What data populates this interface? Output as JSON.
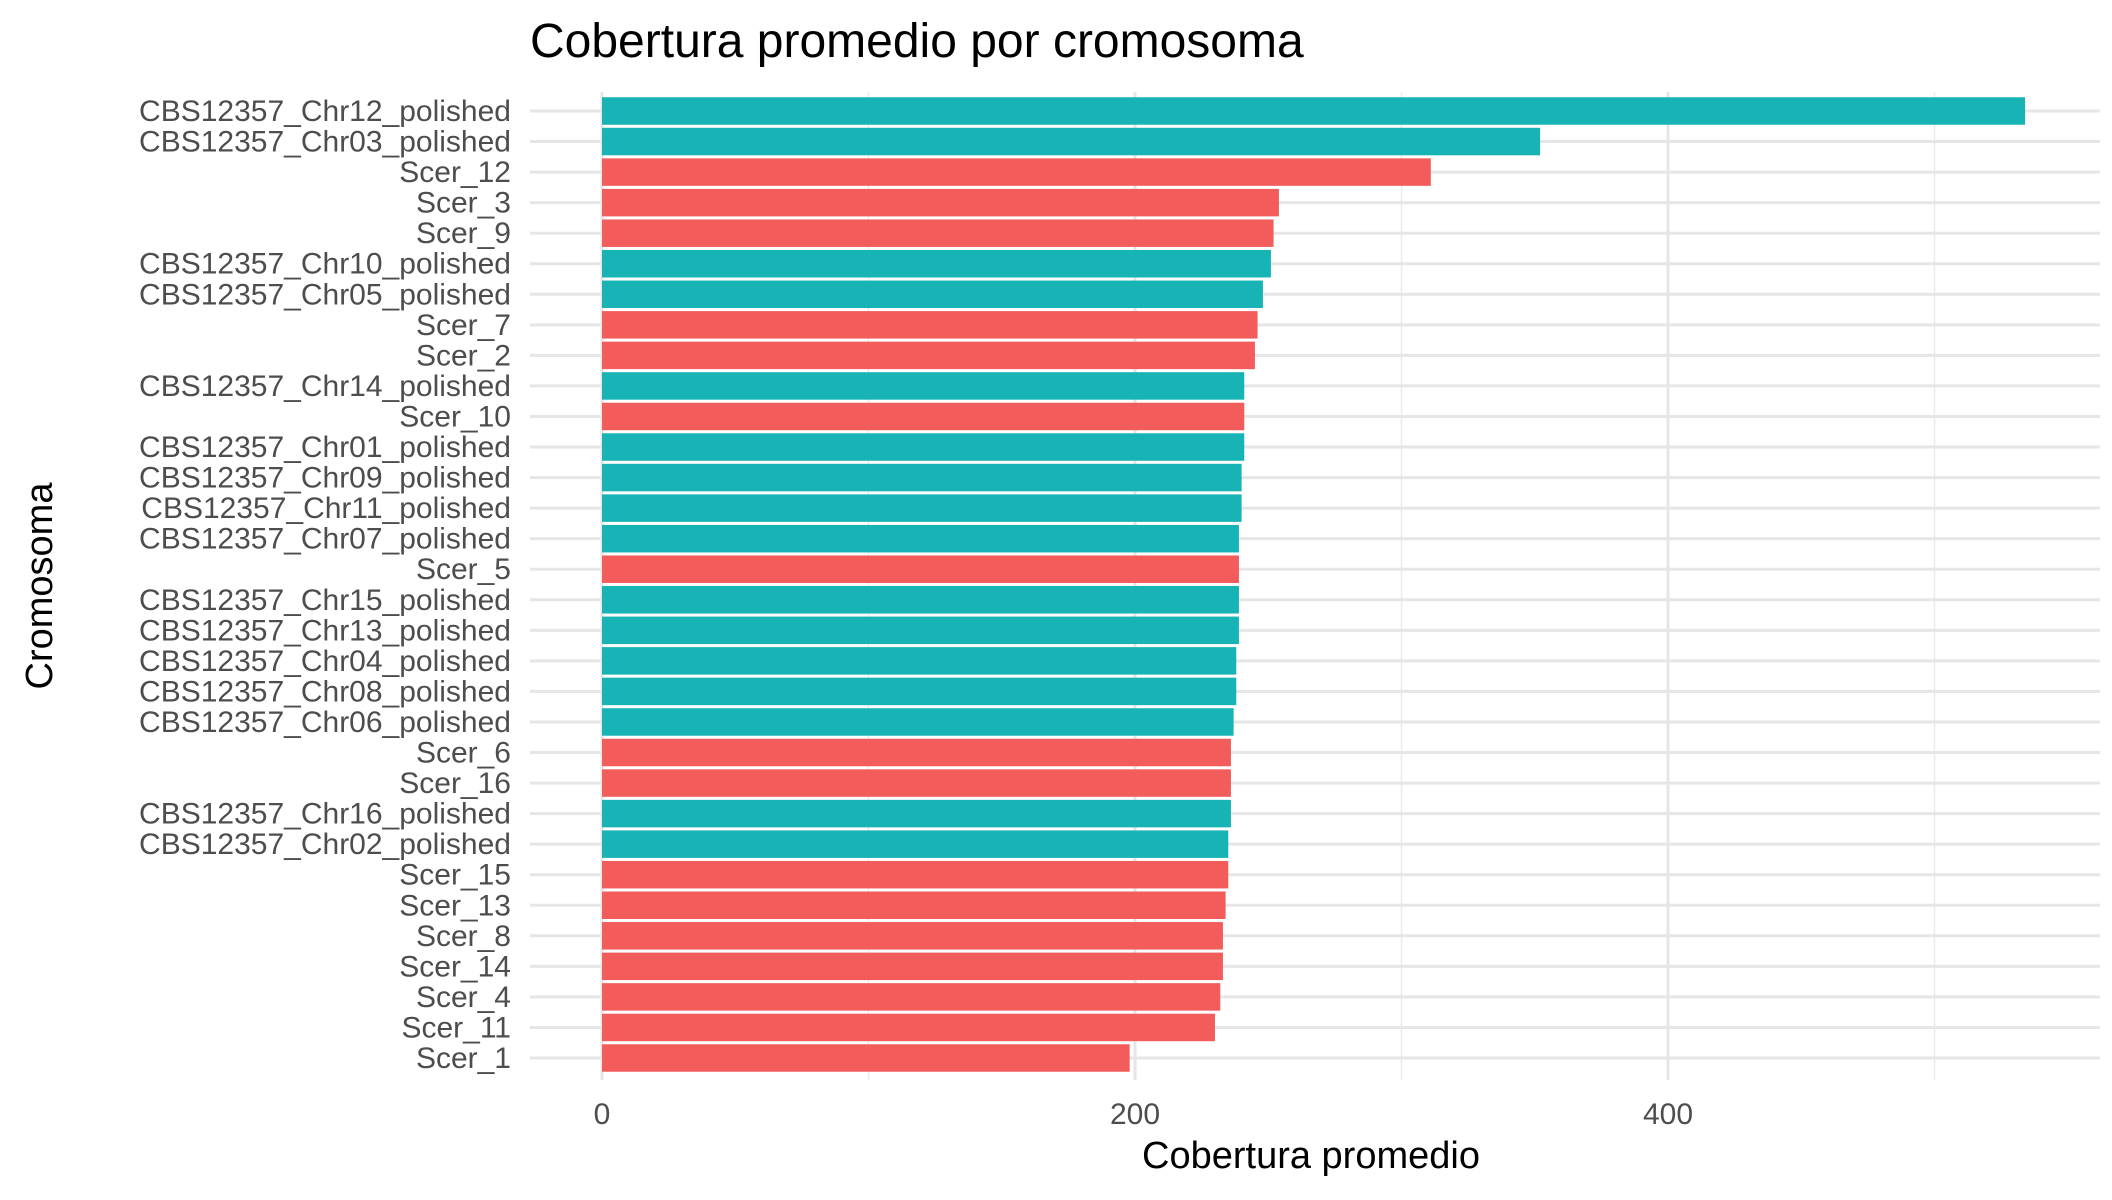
{
  "chart_data": {
    "type": "bar",
    "orientation": "horizontal",
    "title": "Cobertura promedio por cromosoma",
    "xlabel": "Cobertura promedio",
    "ylabel": "Cromosoma",
    "xlim": [
      0,
      540
    ],
    "xticks": [
      0,
      200,
      400
    ],
    "xtick_labels": [
      "0",
      "200",
      "400"
    ],
    "grid": true,
    "legend": "none",
    "colors": {
      "CBS12357": "#17b3b5",
      "Scer": "#f25d5b"
    },
    "bars": [
      {
        "category": "CBS12357_Chr12_polished",
        "value": 534,
        "group": "CBS12357"
      },
      {
        "category": "CBS12357_Chr03_polished",
        "value": 352,
        "group": "CBS12357"
      },
      {
        "category": "Scer_12",
        "value": 311,
        "group": "Scer"
      },
      {
        "category": "Scer_3",
        "value": 254,
        "group": "Scer"
      },
      {
        "category": "Scer_9",
        "value": 252,
        "group": "Scer"
      },
      {
        "category": "CBS12357_Chr10_polished",
        "value": 251,
        "group": "CBS12357"
      },
      {
        "category": "CBS12357_Chr05_polished",
        "value": 248,
        "group": "CBS12357"
      },
      {
        "category": "Scer_7",
        "value": 246,
        "group": "Scer"
      },
      {
        "category": "Scer_2",
        "value": 245,
        "group": "Scer"
      },
      {
        "category": "CBS12357_Chr14_polished",
        "value": 241,
        "group": "CBS12357"
      },
      {
        "category": "Scer_10",
        "value": 241,
        "group": "Scer"
      },
      {
        "category": "CBS12357_Chr01_polished",
        "value": 241,
        "group": "CBS12357"
      },
      {
        "category": "CBS12357_Chr09_polished",
        "value": 240,
        "group": "CBS12357"
      },
      {
        "category": "CBS12357_Chr11_polished",
        "value": 240,
        "group": "CBS12357"
      },
      {
        "category": "CBS12357_Chr07_polished",
        "value": 239,
        "group": "CBS12357"
      },
      {
        "category": "Scer_5",
        "value": 239,
        "group": "Scer"
      },
      {
        "category": "CBS12357_Chr15_polished",
        "value": 239,
        "group": "CBS12357"
      },
      {
        "category": "CBS12357_Chr13_polished",
        "value": 239,
        "group": "CBS12357"
      },
      {
        "category": "CBS12357_Chr04_polished",
        "value": 238,
        "group": "CBS12357"
      },
      {
        "category": "CBS12357_Chr08_polished",
        "value": 238,
        "group": "CBS12357"
      },
      {
        "category": "CBS12357_Chr06_polished",
        "value": 237,
        "group": "CBS12357"
      },
      {
        "category": "Scer_6",
        "value": 236,
        "group": "Scer"
      },
      {
        "category": "Scer_16",
        "value": 236,
        "group": "Scer"
      },
      {
        "category": "CBS12357_Chr16_polished",
        "value": 236,
        "group": "CBS12357"
      },
      {
        "category": "CBS12357_Chr02_polished",
        "value": 235,
        "group": "CBS12357"
      },
      {
        "category": "Scer_15",
        "value": 235,
        "group": "Scer"
      },
      {
        "category": "Scer_13",
        "value": 234,
        "group": "Scer"
      },
      {
        "category": "Scer_8",
        "value": 233,
        "group": "Scer"
      },
      {
        "category": "Scer_14",
        "value": 233,
        "group": "Scer"
      },
      {
        "category": "Scer_4",
        "value": 232,
        "group": "Scer"
      },
      {
        "category": "Scer_11",
        "value": 230,
        "group": "Scer"
      },
      {
        "category": "Scer_1",
        "value": 198,
        "group": "Scer"
      }
    ]
  }
}
